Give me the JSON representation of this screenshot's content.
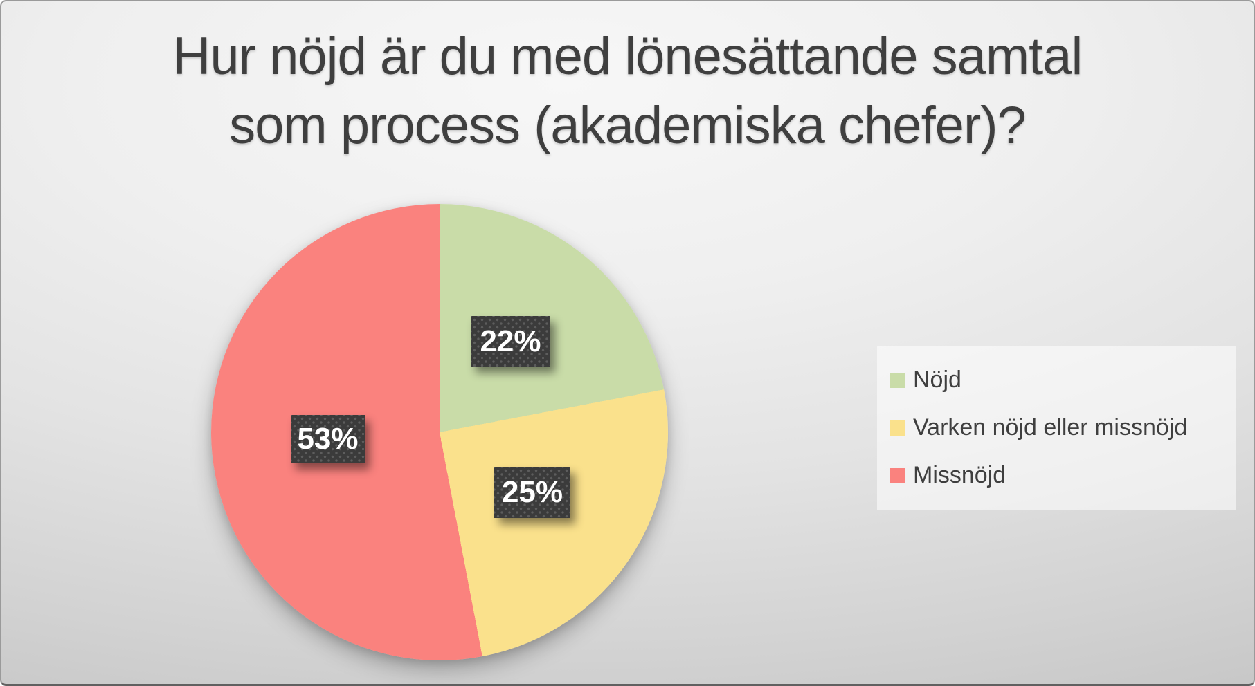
{
  "chart_data": {
    "type": "pie",
    "title": "Hur nöjd är du med lönesättande samtal som process (akademiska chefer)?",
    "title_lines": [
      "Hur nöjd är du med lönesättande samtal",
      "som process (akademiska chefer)?"
    ],
    "unit": "%",
    "start_angle_deg": 0,
    "direction": "clockwise",
    "legend_position": "right",
    "slices": [
      {
        "label": "Nöjd",
        "value": 22,
        "display": "22%",
        "color": "#c9dca8"
      },
      {
        "label": "Varken nöjd eller missnöjd",
        "value": 25,
        "display": "25%",
        "color": "#fae18c"
      },
      {
        "label": "Missnöjd",
        "value": 53,
        "display": "53%",
        "color": "#fa827e"
      }
    ],
    "colors": {
      "title_text": "#3f3f3f",
      "legend_text": "#3f3f3f",
      "label_box_bg": "#3b3b3b",
      "label_box_dot": "#5d5d5d",
      "label_text": "#ffffff"
    }
  }
}
